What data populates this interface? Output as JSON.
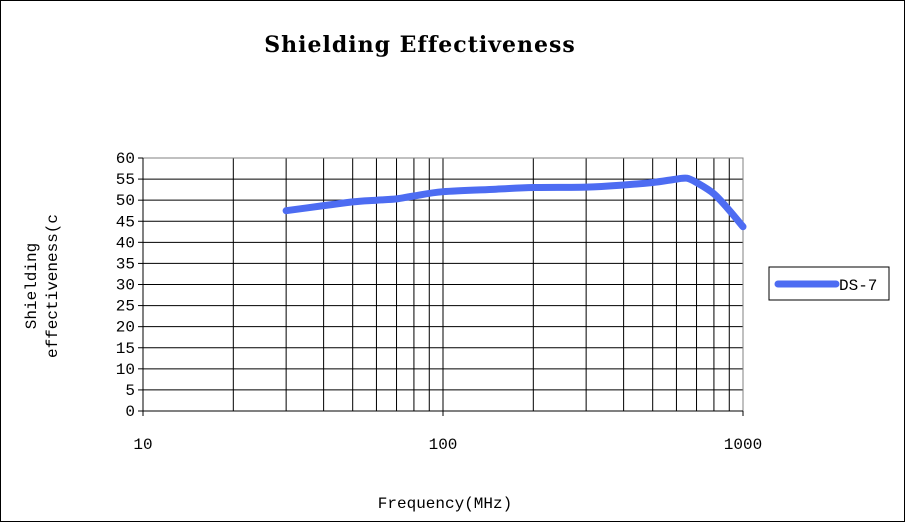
{
  "chart_data": {
    "type": "line",
    "title": "Shielding Effectiveness",
    "xlabel": "Frequency(MHz)",
    "ylabel_lines": [
      "Shielding",
      "effectiveness(c"
    ],
    "x_scale": "log",
    "xlim": [
      10,
      1000
    ],
    "ylim": [
      0,
      60
    ],
    "x_ticks": [
      "10",
      "100",
      "1000"
    ],
    "y_ticks": [
      "0",
      "5",
      "10",
      "15",
      "20",
      "25",
      "30",
      "35",
      "40",
      "45",
      "50",
      "55",
      "60"
    ],
    "grid": true,
    "legend_position": "right",
    "series": [
      {
        "name": "DS-7",
        "color": "#4d6cf2",
        "x": [
          30,
          40,
          50,
          60,
          70,
          80,
          100,
          150,
          200,
          300,
          400,
          500,
          600,
          650,
          700,
          800,
          900,
          1000
        ],
        "y": [
          47.5,
          48.7,
          49.6,
          50,
          50.3,
          51,
          52,
          52.6,
          53,
          53.1,
          53.6,
          54.2,
          55,
          55.2,
          54.2,
          51.5,
          47.6,
          43.7
        ]
      }
    ]
  }
}
